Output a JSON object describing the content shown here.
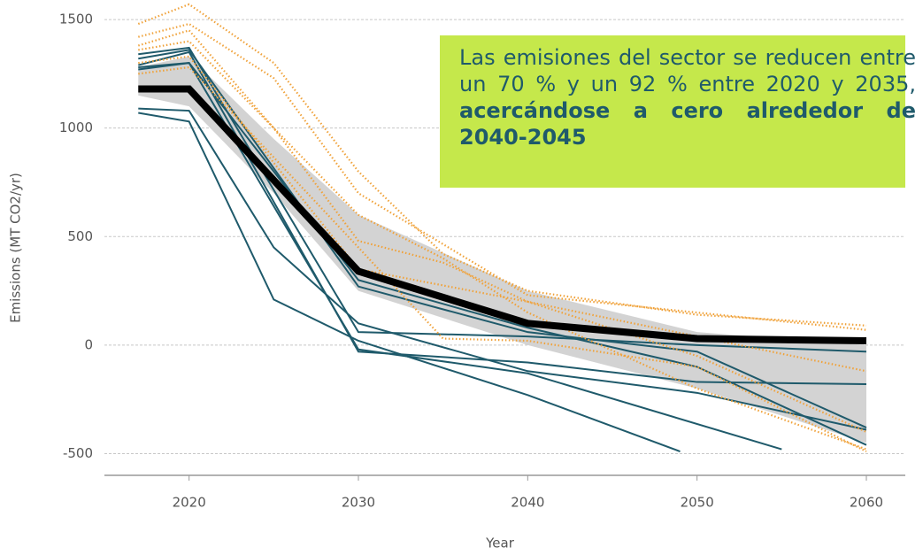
{
  "chart_data": {
    "type": "line",
    "x_label": "Year",
    "y_label": "Emissions (MT CO2/yr)",
    "xlim": [
      2015,
      2062.3
    ],
    "ylim": [
      -600,
      1590
    ],
    "xticks": [
      2020,
      2030,
      2040,
      2050,
      2060
    ],
    "yticks": [
      -500,
      0,
      500,
      1000,
      1500
    ],
    "grid": true,
    "annotation": {
      "text": "Las emisiones del sector se reducen entre un 70 % y un 92 % entre 2020 y 2035, ",
      "bold": "acercándose a cero alrededor de 2040-2045",
      "color": "#c5e84b"
    },
    "band": {
      "color": "#d3d3d3",
      "x": [
        2017,
        2020,
        2025,
        2030,
        2040,
        2050,
        2060
      ],
      "low": [
        1150,
        1100,
        700,
        250,
        0,
        -200,
        -450
      ],
      "high": [
        1280,
        1330,
        950,
        600,
        250,
        60,
        0
      ]
    },
    "series": [
      {
        "color": "#1f5a6b",
        "style": "solid",
        "x": [
          2017,
          2020,
          2025,
          2030,
          2040,
          2050,
          2060
        ],
        "values": [
          1090,
          1080,
          450,
          100,
          -120,
          -220,
          -390
        ]
      },
      {
        "color": "#1f5a6b",
        "style": "solid",
        "x": [
          2017,
          2020,
          2025,
          2030,
          2040,
          2049
        ],
        "values": [
          1070,
          1030,
          210,
          20,
          -230,
          -490
        ]
      },
      {
        "color": "#1f5a6b",
        "style": "solid",
        "x": [
          2017,
          2020,
          2030,
          2040,
          2050,
          2060
        ],
        "values": [
          1290,
          1350,
          -30,
          -80,
          -170,
          -180
        ]
      },
      {
        "color": "#1f5a6b",
        "style": "solid",
        "x": [
          2017,
          2020,
          2030,
          2040,
          2050,
          2060
        ],
        "values": [
          1340,
          1370,
          60,
          40,
          0,
          -30
        ]
      },
      {
        "color": "#1f5a6b",
        "style": "solid",
        "x": [
          2017,
          2020,
          2030,
          2040,
          2055
        ],
        "values": [
          1280,
          1300,
          -20,
          -130,
          -480
        ]
      },
      {
        "color": "#1f5a6b",
        "style": "solid",
        "x": [
          2017,
          2020,
          2030,
          2040,
          2050,
          2060
        ],
        "values": [
          1270,
          1300,
          300,
          80,
          -100,
          -460
        ]
      },
      {
        "color": "#1f5a6b",
        "style": "solid",
        "x": [
          2017,
          2020,
          2030,
          2040,
          2050,
          2060
        ],
        "values": [
          1320,
          1360,
          270,
          60,
          -30,
          -380
        ]
      },
      {
        "color": "#f0a23a",
        "style": "dotted",
        "x": [
          2017,
          2020,
          2025,
          2030,
          2035,
          2040,
          2050,
          2060
        ],
        "values": [
          1480,
          1570,
          1300,
          800,
          420,
          250,
          140,
          90
        ]
      },
      {
        "color": "#f0a23a",
        "style": "dotted",
        "x": [
          2017,
          2020,
          2025,
          2030,
          2040,
          2050,
          2060
        ],
        "values": [
          1420,
          1480,
          1230,
          700,
          230,
          150,
          70
        ]
      },
      {
        "color": "#f0a23a",
        "style": "dotted",
        "x": [
          2017,
          2020,
          2025,
          2030,
          2035,
          2040,
          2050,
          2060
        ],
        "values": [
          1380,
          1450,
          1000,
          480,
          380,
          200,
          40,
          -120
        ]
      },
      {
        "color": "#f0a23a",
        "style": "dotted",
        "x": [
          2017,
          2020,
          2030,
          2035,
          2040,
          2050,
          2060
        ],
        "values": [
          1360,
          1400,
          600,
          400,
          150,
          -200,
          -480
        ]
      },
      {
        "color": "#f0a23a",
        "style": "dotted",
        "x": [
          2017,
          2020,
          2030,
          2035,
          2040,
          2050,
          2060
        ],
        "values": [
          1250,
          1280,
          450,
          30,
          20,
          -100,
          -490
        ]
      },
      {
        "color": "#f0a23a",
        "style": "dotted",
        "x": [
          2017,
          2020,
          2030,
          2040,
          2050,
          2060
        ],
        "values": [
          1300,
          1330,
          350,
          200,
          -50,
          -400
        ]
      },
      {
        "color": "#000000",
        "style": "thick",
        "x": [
          2017,
          2020,
          2030,
          2040,
          2050,
          2060
        ],
        "values": [
          1180,
          1180,
          340,
          100,
          30,
          20
        ]
      }
    ]
  }
}
